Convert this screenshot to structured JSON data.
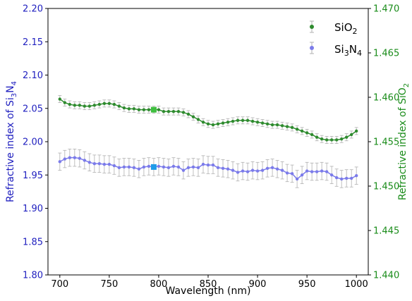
{
  "chart_data": {
    "type": "line",
    "xlabel": "Wavelength (nm)",
    "ylabel_left": {
      "pre": "Refractive index of Si",
      "sub1": "3",
      "mid": "N",
      "sub2": "4"
    },
    "ylabel_right": {
      "pre": "Refractive index of SiO",
      "sub": "2"
    },
    "x_ticks": [
      700,
      750,
      800,
      850,
      900,
      950,
      1000
    ],
    "x_tick_labels": [
      "700",
      "750",
      "800",
      "850",
      "900",
      "950",
      "1000"
    ],
    "y_left_ticks": [
      1.8,
      1.85,
      1.9,
      1.95,
      2.0,
      2.05,
      2.1,
      2.15,
      2.2
    ],
    "y_left_tick_labels": [
      "1.80",
      "1.85",
      "1.90",
      "1.95",
      "2.00",
      "2.05",
      "2.10",
      "2.15",
      "2.20"
    ],
    "y_right_ticks": [
      1.44,
      1.445,
      1.45,
      1.455,
      1.46,
      1.465,
      1.47
    ],
    "y_right_tick_labels": [
      "1.440",
      "1.445",
      "1.450",
      "1.455",
      "1.460",
      "1.465",
      "1.470"
    ],
    "xlim": [
      688,
      1012
    ],
    "ylim_left": [
      1.8,
      2.2
    ],
    "ylim_right": [
      1.44,
      1.47
    ],
    "legend_position": "top-right",
    "colors": {
      "sio2": "#2e8b2e",
      "si3n4": "#7b7bea",
      "left_axis": "#1f1fbf",
      "right_axis": "#1a8c1a",
      "errorbar": "#b0b0b0",
      "highlight": "#1e9be8"
    },
    "x": [
      700,
      705,
      710,
      715,
      720,
      725,
      730,
      735,
      740,
      745,
      750,
      755,
      760,
      765,
      770,
      775,
      780,
      785,
      790,
      795,
      800,
      805,
      810,
      815,
      820,
      825,
      830,
      835,
      840,
      845,
      850,
      855,
      860,
      865,
      870,
      875,
      880,
      885,
      890,
      895,
      900,
      905,
      910,
      915,
      920,
      925,
      930,
      935,
      940,
      945,
      950,
      955,
      960,
      965,
      970,
      975,
      980,
      985,
      990,
      995,
      1000
    ],
    "series": [
      {
        "name_pre": "SiO",
        "name_sub": "2",
        "axis": "right",
        "y_err": 0.0004,
        "highlight_x": 795,
        "values": [
          1.4598,
          1.4594,
          1.4592,
          1.4591,
          1.4591,
          1.459,
          1.459,
          1.4591,
          1.4592,
          1.4593,
          1.4593,
          1.4592,
          1.459,
          1.4588,
          1.4587,
          1.4587,
          1.4586,
          1.4586,
          1.4586,
          1.4586,
          1.4586,
          1.4584,
          1.4584,
          1.4584,
          1.4584,
          1.4583,
          1.4581,
          1.4578,
          1.4575,
          1.4572,
          1.457,
          1.4569,
          1.457,
          1.4571,
          1.4572,
          1.4573,
          1.4574,
          1.4574,
          1.4574,
          1.4573,
          1.4572,
          1.4571,
          1.457,
          1.4569,
          1.4569,
          1.4568,
          1.4567,
          1.4566,
          1.4564,
          1.4562,
          1.456,
          1.4558,
          1.4555,
          1.4553,
          1.4552,
          1.4552,
          1.4552,
          1.4553,
          1.4555,
          1.4558,
          1.4562
        ]
      },
      {
        "name_pre": "Si",
        "name_sub1": "3",
        "name_mid": "N",
        "name_sub2": "4",
        "axis": "left",
        "y_err": 0.013,
        "highlight_x": 795,
        "values": [
          1.97,
          1.974,
          1.976,
          1.976,
          1.975,
          1.972,
          1.969,
          1.967,
          1.967,
          1.966,
          1.966,
          1.964,
          1.961,
          1.962,
          1.962,
          1.961,
          1.959,
          1.962,
          1.963,
          1.962,
          1.963,
          1.962,
          1.961,
          1.963,
          1.962,
          1.957,
          1.961,
          1.962,
          1.961,
          1.966,
          1.965,
          1.965,
          1.961,
          1.96,
          1.959,
          1.957,
          1.954,
          1.956,
          1.955,
          1.957,
          1.956,
          1.957,
          1.96,
          1.961,
          1.959,
          1.957,
          1.953,
          1.952,
          1.944,
          1.95,
          1.956,
          1.955,
          1.955,
          1.956,
          1.955,
          1.95,
          1.946,
          1.944,
          1.945,
          1.945,
          1.949
        ]
      }
    ]
  }
}
